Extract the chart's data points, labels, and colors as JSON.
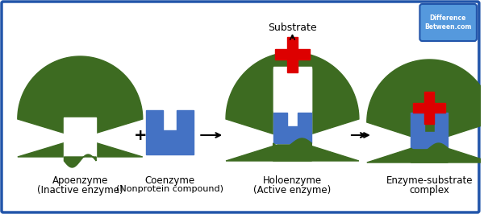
{
  "bg_color": "#ffffff",
  "border_color": "#2255aa",
  "green": "#3d6b21",
  "blue": "#4472c4",
  "red": "#dd0000",
  "white": "#ffffff",
  "label1": "Apoenzyme\n(Inactive enzyme)",
  "label2": "Coenzyme\n(Nonprotein compound)",
  "label3": "Holoenzyme\n(Active enzyme)",
  "label4": "Enzyme-substrate\ncomplex",
  "substrate_label": "Substrate",
  "logo_text": "Difference\nBetween.com",
  "logo_bg": "#5599dd",
  "logo_border": "#2255aa"
}
